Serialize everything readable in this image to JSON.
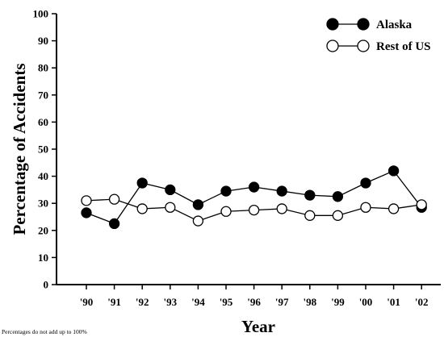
{
  "chart_data": {
    "type": "line",
    "title": "",
    "xlabel": "Year",
    "ylabel": "Percentage of Accidents",
    "categories": [
      "'90",
      "'91",
      "'92",
      "'93",
      "'94",
      "'95",
      "'96",
      "'97",
      "'98",
      "'99",
      "'00",
      "'01",
      "'02"
    ],
    "ylim": [
      0,
      100
    ],
    "yticks": [
      0,
      10,
      20,
      30,
      40,
      50,
      60,
      70,
      80,
      90,
      100
    ],
    "grid": false,
    "legend_position": "top-right",
    "series": [
      {
        "name": "Alaska",
        "marker": "filled-circle",
        "color": "#000000",
        "values": [
          26.5,
          22.5,
          37.5,
          35,
          29.5,
          34.5,
          36,
          34.5,
          33,
          32.5,
          37.5,
          42,
          28.5
        ]
      },
      {
        "name": "Rest of US",
        "marker": "open-circle",
        "color": "#000000",
        "values": [
          31,
          31.5,
          28,
          28.5,
          23.5,
          27,
          27.5,
          28,
          25.5,
          25.5,
          28.5,
          28,
          29.5
        ]
      }
    ],
    "footnote": "Percentages do not add up to 100%"
  }
}
